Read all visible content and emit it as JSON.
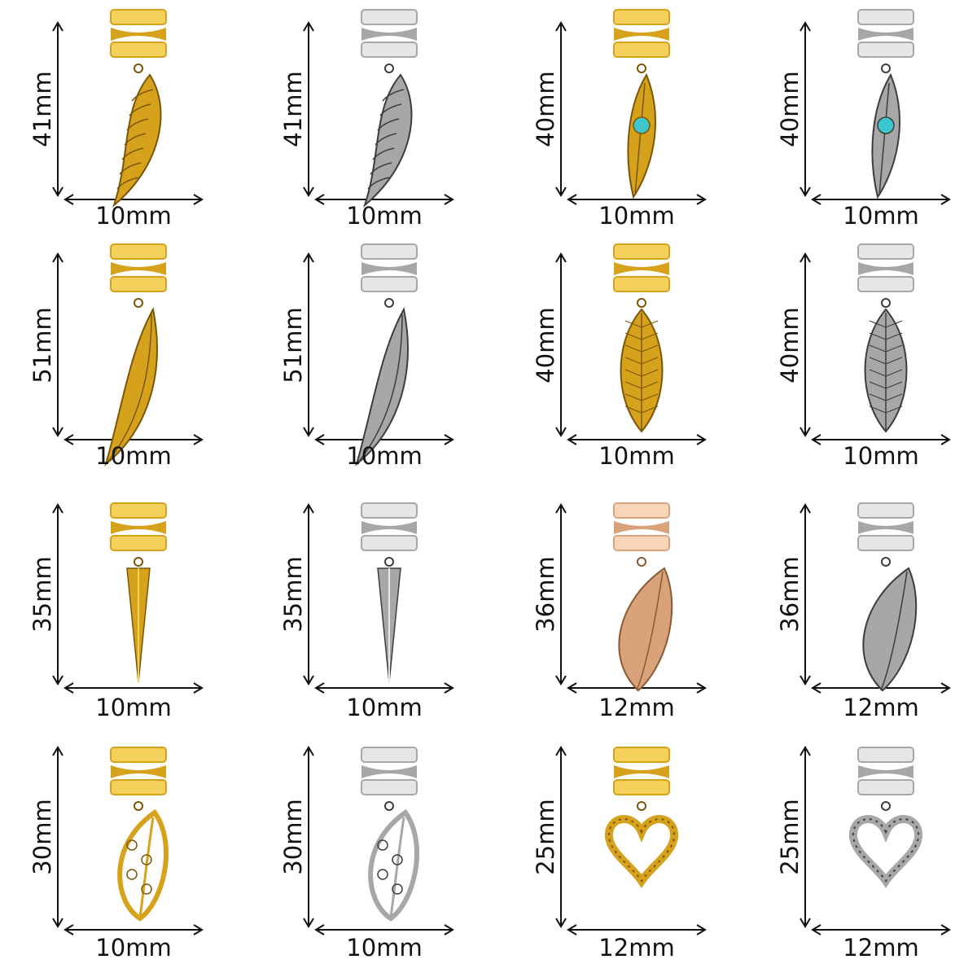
{
  "metal_colors": {
    "gold": "#d6a21c",
    "gold_light": "#f3d15a",
    "silver": "#a7a7a7",
    "silver_light": "#e6e6e6",
    "rose_gold": "#d9a27a",
    "turquoise": "#3ec6cf"
  },
  "rows": [
    {
      "items": [
        {
          "height": "41mm",
          "width": "10mm",
          "icon": "wing-charm-icon",
          "metal": "gold"
        },
        {
          "height": "41mm",
          "width": "10mm",
          "icon": "wing-charm-icon",
          "metal": "silver"
        },
        {
          "height": "40mm",
          "width": "10mm",
          "icon": "turquoise-feather-charm-icon",
          "metal": "gold"
        },
        {
          "height": "40mm",
          "width": "10mm",
          "icon": "turquoise-feather-charm-icon",
          "metal": "silver"
        }
      ]
    },
    {
      "items": [
        {
          "height": "51mm",
          "width": "10mm",
          "icon": "long-feather-charm-icon",
          "metal": "gold"
        },
        {
          "height": "51mm",
          "width": "10mm",
          "icon": "long-feather-charm-icon",
          "metal": "silver"
        },
        {
          "height": "40mm",
          "width": "10mm",
          "icon": "feather-charm-icon",
          "metal": "gold"
        },
        {
          "height": "40mm",
          "width": "10mm",
          "icon": "feather-charm-icon",
          "metal": "silver"
        }
      ]
    },
    {
      "items": [
        {
          "height": "35mm",
          "width": "10mm",
          "icon": "spike-charm-icon",
          "metal": "gold"
        },
        {
          "height": "35mm",
          "width": "10mm",
          "icon": "spike-charm-icon",
          "metal": "silver"
        },
        {
          "height": "36mm",
          "width": "12mm",
          "icon": "leaf-feather-charm-icon",
          "metal": "rose_gold"
        },
        {
          "height": "36mm",
          "width": "12mm",
          "icon": "leaf-feather-charm-icon",
          "metal": "silver"
        }
      ]
    },
    {
      "items": [
        {
          "height": "30mm",
          "width": "10mm",
          "icon": "filigree-leaf-charm-icon",
          "metal": "gold"
        },
        {
          "height": "30mm",
          "width": "10mm",
          "icon": "filigree-leaf-charm-icon",
          "metal": "silver"
        },
        {
          "height": "25mm",
          "width": "12mm",
          "icon": "heart-charm-icon",
          "metal": "gold"
        },
        {
          "height": "25mm",
          "width": "12mm",
          "icon": "heart-charm-icon",
          "metal": "silver"
        }
      ]
    }
  ]
}
